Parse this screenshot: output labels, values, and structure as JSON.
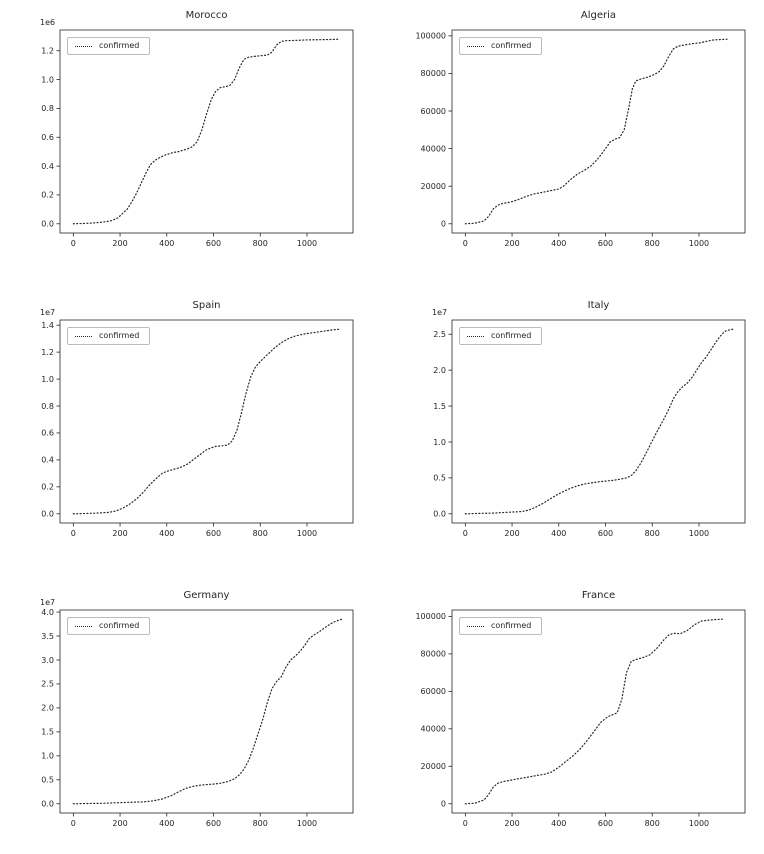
{
  "figure": {
    "background": "#ffffff",
    "text_color": "#262626",
    "line_color": "#262626",
    "legend_border_color": "#bcbcbc"
  },
  "chart_data": [
    {
      "type": "line",
      "title": "Morocco",
      "legend_label": "confirmed",
      "legend_position": "upper left",
      "line_style": "dotted",
      "offset_label": "1e6",
      "xlim": [
        -57,
        1197
      ],
      "ylim": [
        -0.064,
        1.344
      ],
      "xticks": [
        0,
        200,
        400,
        600,
        800,
        1000
      ],
      "xtick_labels": [
        "0",
        "200",
        "400",
        "600",
        "800",
        "1000"
      ],
      "yticks": [
        0,
        0.2,
        0.4,
        0.6,
        0.8,
        1.0,
        1.2
      ],
      "ytick_labels": [
        "0.0",
        "0.2",
        "0.4",
        "0.6",
        "0.8",
        "1.0",
        "1.2"
      ],
      "x": [
        0,
        40,
        80,
        120,
        160,
        190,
        210,
        230,
        250,
        270,
        290,
        310,
        330,
        350,
        370,
        390,
        410,
        430,
        450,
        470,
        490,
        510,
        530,
        550,
        570,
        590,
        610,
        630,
        650,
        670,
        690,
        710,
        730,
        750,
        770,
        800,
        830,
        850,
        870,
        890,
        910,
        950,
        1000,
        1050,
        1100,
        1140
      ],
      "y": [
        0,
        0.002,
        0.005,
        0.01,
        0.02,
        0.04,
        0.07,
        0.1,
        0.15,
        0.21,
        0.28,
        0.35,
        0.41,
        0.44,
        0.46,
        0.475,
        0.485,
        0.495,
        0.5,
        0.51,
        0.52,
        0.535,
        0.57,
        0.65,
        0.76,
        0.86,
        0.92,
        0.945,
        0.95,
        0.96,
        1.0,
        1.08,
        1.14,
        1.155,
        1.16,
        1.165,
        1.17,
        1.19,
        1.24,
        1.265,
        1.27,
        1.272,
        1.275,
        1.277,
        1.278,
        1.28
      ]
    },
    {
      "type": "line",
      "title": "Algeria",
      "legend_label": "confirmed",
      "legend_position": "upper left",
      "line_style": "dotted",
      "offset_label": "",
      "xlim": [
        -57,
        1197
      ],
      "ylim": [
        -4910,
        103110
      ],
      "xticks": [
        0,
        200,
        400,
        600,
        800,
        1000
      ],
      "xtick_labels": [
        "0",
        "200",
        "400",
        "600",
        "800",
        "1000"
      ],
      "yticks": [
        0,
        20000,
        40000,
        60000,
        80000,
        100000
      ],
      "ytick_labels": [
        "0",
        "20000",
        "40000",
        "60000",
        "80000",
        "100000"
      ],
      "x": [
        0,
        40,
        80,
        100,
        120,
        140,
        160,
        180,
        200,
        230,
        260,
        290,
        320,
        350,
        380,
        400,
        420,
        450,
        480,
        510,
        540,
        570,
        600,
        620,
        640,
        660,
        680,
        700,
        715,
        730,
        750,
        780,
        810,
        830,
        850,
        870,
        890,
        910,
        940,
        970,
        1000,
        1030,
        1060,
        1090,
        1120
      ],
      "y": [
        0,
        300,
        1500,
        4000,
        8000,
        10000,
        10800,
        11200,
        11800,
        13000,
        14500,
        15800,
        16500,
        17200,
        18000,
        18500,
        20000,
        23500,
        26500,
        28500,
        31000,
        35000,
        40000,
        43500,
        45000,
        45800,
        50000,
        62000,
        72000,
        76000,
        77000,
        78000,
        79500,
        81000,
        84000,
        89000,
        93000,
        94500,
        95200,
        95800,
        96200,
        97000,
        97800,
        98000,
        98200
      ]
    },
    {
      "type": "line",
      "title": "Spain",
      "legend_label": "confirmed",
      "legend_position": "upper left",
      "line_style": "dotted",
      "offset_label": "1e7",
      "xlim": [
        -57,
        1197
      ],
      "ylim": [
        -0.0685,
        1.4385
      ],
      "xticks": [
        0,
        200,
        400,
        600,
        800,
        1000
      ],
      "xtick_labels": [
        "0",
        "200",
        "400",
        "600",
        "800",
        "1000"
      ],
      "yticks": [
        0,
        0.2,
        0.4,
        0.6,
        0.8,
        1.0,
        1.2,
        1.4
      ],
      "ytick_labels": [
        "0.0",
        "0.2",
        "0.4",
        "0.6",
        "0.8",
        "1.0",
        "1.2",
        "1.4"
      ],
      "x": [
        0,
        50,
        100,
        150,
        180,
        210,
        240,
        270,
        300,
        330,
        360,
        380,
        400,
        430,
        460,
        490,
        520,
        550,
        570,
        590,
        610,
        640,
        660,
        680,
        700,
        720,
        740,
        760,
        780,
        800,
        830,
        860,
        890,
        920,
        950,
        990,
        1030,
        1070,
        1110,
        1140
      ],
      "y": [
        0,
        0.002,
        0.005,
        0.01,
        0.02,
        0.04,
        0.07,
        0.11,
        0.16,
        0.22,
        0.27,
        0.3,
        0.315,
        0.33,
        0.345,
        0.37,
        0.41,
        0.45,
        0.475,
        0.49,
        0.5,
        0.505,
        0.51,
        0.54,
        0.62,
        0.75,
        0.9,
        1.02,
        1.09,
        1.13,
        1.18,
        1.23,
        1.27,
        1.3,
        1.32,
        1.335,
        1.345,
        1.355,
        1.365,
        1.37
      ]
    },
    {
      "type": "line",
      "title": "Italy",
      "legend_label": "confirmed",
      "legend_position": "upper left",
      "line_style": "dotted",
      "offset_label": "1e7",
      "xlim": [
        -57,
        1197
      ],
      "ylim": [
        -0.1285,
        2.6985
      ],
      "xticks": [
        0,
        200,
        400,
        600,
        800,
        1000
      ],
      "xtick_labels": [
        "0",
        "200",
        "400",
        "600",
        "800",
        "1000"
      ],
      "yticks": [
        0,
        0.5,
        1.0,
        1.5,
        2.0,
        2.5
      ],
      "ytick_labels": [
        "0.0",
        "0.5",
        "1.0",
        "1.5",
        "2.0",
        "2.5"
      ],
      "x": [
        0,
        60,
        120,
        180,
        240,
        270,
        300,
        330,
        360,
        390,
        420,
        450,
        480,
        510,
        540,
        570,
        600,
        630,
        660,
        690,
        710,
        730,
        750,
        770,
        790,
        810,
        830,
        850,
        870,
        890,
        910,
        930,
        950,
        970,
        990,
        1010,
        1030,
        1050,
        1070,
        1090,
        1110,
        1130,
        1145
      ],
      "y": [
        0,
        0.005,
        0.01,
        0.02,
        0.03,
        0.05,
        0.09,
        0.14,
        0.2,
        0.26,
        0.31,
        0.355,
        0.39,
        0.415,
        0.43,
        0.445,
        0.455,
        0.465,
        0.48,
        0.5,
        0.53,
        0.6,
        0.7,
        0.82,
        0.95,
        1.08,
        1.2,
        1.32,
        1.45,
        1.6,
        1.7,
        1.77,
        1.82,
        1.9,
        2.0,
        2.1,
        2.18,
        2.28,
        2.38,
        2.47,
        2.54,
        2.56,
        2.57
      ]
    },
    {
      "type": "line",
      "title": "Germany",
      "legend_label": "confirmed",
      "legend_position": "upper left",
      "line_style": "dotted",
      "offset_label": "1e7",
      "xlim": [
        -57,
        1197
      ],
      "ylim": [
        -0.1925,
        4.0425
      ],
      "xticks": [
        0,
        200,
        400,
        600,
        800,
        1000
      ],
      "xtick_labels": [
        "0",
        "200",
        "400",
        "600",
        "800",
        "1000"
      ],
      "yticks": [
        0,
        0.5,
        1.0,
        1.5,
        2.0,
        2.5,
        3.0,
        3.5,
        4.0
      ],
      "ytick_labels": [
        "0.0",
        "0.5",
        "1.0",
        "1.5",
        "2.0",
        "2.5",
        "3.0",
        "3.5",
        "4.0"
      ],
      "x": [
        0,
        60,
        120,
        180,
        240,
        300,
        340,
        380,
        420,
        450,
        480,
        510,
        540,
        570,
        600,
        630,
        660,
        690,
        710,
        730,
        750,
        770,
        790,
        810,
        830,
        850,
        870,
        890,
        910,
        930,
        950,
        970,
        990,
        1010,
        1030,
        1050,
        1070,
        1090,
        1110,
        1130,
        1150
      ],
      "y": [
        0,
        0.005,
        0.01,
        0.02,
        0.03,
        0.04,
        0.06,
        0.1,
        0.17,
        0.25,
        0.32,
        0.36,
        0.385,
        0.4,
        0.41,
        0.43,
        0.46,
        0.52,
        0.6,
        0.72,
        0.9,
        1.15,
        1.45,
        1.75,
        2.1,
        2.4,
        2.55,
        2.65,
        2.85,
        3.0,
        3.08,
        3.18,
        3.3,
        3.45,
        3.52,
        3.58,
        3.65,
        3.72,
        3.78,
        3.82,
        3.85
      ]
    },
    {
      "type": "line",
      "title": "France",
      "legend_label": "confirmed",
      "legend_position": "upper left",
      "line_style": "dotted",
      "offset_label": "",
      "xlim": [
        -57,
        1197
      ],
      "ylim": [
        -4925,
        103425
      ],
      "xticks": [
        0,
        200,
        400,
        600,
        800,
        1000
      ],
      "xtick_labels": [
        "0",
        "200",
        "400",
        "600",
        "800",
        "1000"
      ],
      "yticks": [
        0,
        20000,
        40000,
        60000,
        80000,
        100000
      ],
      "ytick_labels": [
        "0",
        "20000",
        "40000",
        "60000",
        "80000",
        "100000"
      ],
      "x": [
        0,
        40,
        80,
        100,
        120,
        140,
        160,
        190,
        220,
        250,
        280,
        310,
        340,
        370,
        400,
        430,
        460,
        490,
        520,
        550,
        580,
        610,
        630,
        650,
        670,
        690,
        710,
        730,
        760,
        790,
        820,
        850,
        870,
        890,
        920,
        950,
        980,
        1010,
        1040,
        1070,
        1100
      ],
      "y": [
        0,
        300,
        2000,
        5000,
        9000,
        11000,
        11800,
        12500,
        13200,
        13800,
        14500,
        15200,
        15800,
        17000,
        19500,
        22500,
        25500,
        29000,
        33500,
        38500,
        43500,
        46500,
        47500,
        48500,
        56000,
        70000,
        76000,
        77000,
        78000,
        79500,
        83000,
        87500,
        90000,
        91000,
        90800,
        92500,
        95500,
        97500,
        98000,
        98300,
        98500
      ]
    }
  ]
}
